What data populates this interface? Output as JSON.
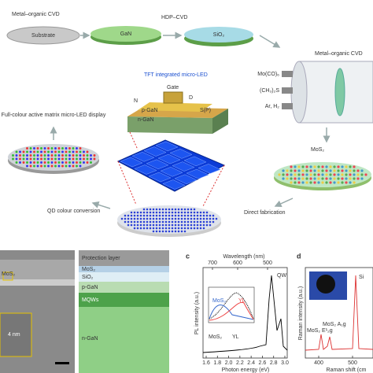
{
  "top": {
    "step1": {
      "process": "Metal–organic CVD",
      "label": "Substrate"
    },
    "step2": {
      "process": "HDP–CVD",
      "label": "GaN"
    },
    "step3": {
      "label": "SiO₂"
    },
    "step4": {
      "process": "Metal–organic CVD",
      "gases": [
        "Mo(CO)₆",
        "(CH₃)₂S",
        "Ar, H₂"
      ]
    },
    "step5": {
      "label": "MoS₂"
    },
    "step6": {
      "label": "Direct fabrication"
    },
    "device": {
      "title": "TFT integrated micro-LED",
      "gate": "Gate",
      "n": "N",
      "pgan": "p-GaN",
      "ngan": "n-GaN",
      "d": "D",
      "sp": "S(P)"
    },
    "step7": {
      "label": "QD colour conversion"
    },
    "step8": {
      "label": "Full-colour active matrix micro-LED display"
    }
  },
  "panel_b": {
    "tem_label": "MoS₂",
    "scale": "4 nm",
    "layers": [
      "Protection layer",
      "MoS₂",
      "SiO₂",
      "p-GaN",
      "MQWs",
      "n-GaN"
    ]
  },
  "panel_c": {
    "letter": "c",
    "top_axis": "Wavelength (nm)",
    "top_ticks": [
      "700",
      "600",
      "500"
    ],
    "y_axis": "PL intensity (a.u.)",
    "x_axis": "Photon energy (eV)",
    "x_ticks": [
      "1.6",
      "1.8",
      "2.0",
      "2.2",
      "2.4",
      "2.6",
      "2.8",
      "3.0"
    ],
    "annotations": [
      "QW",
      "MoS₂",
      "YL"
    ],
    "inset": [
      "MoS₂",
      "YL"
    ]
  },
  "panel_d": {
    "letter": "d",
    "y_axis": "Raman intensity (a.u.)",
    "x_axis": "Raman shift (cm",
    "x_ticks": [
      "400",
      "500"
    ],
    "annotations": [
      "Si",
      "MoS₂ A₁g",
      "MoS₂ E¹₂g"
    ]
  }
}
